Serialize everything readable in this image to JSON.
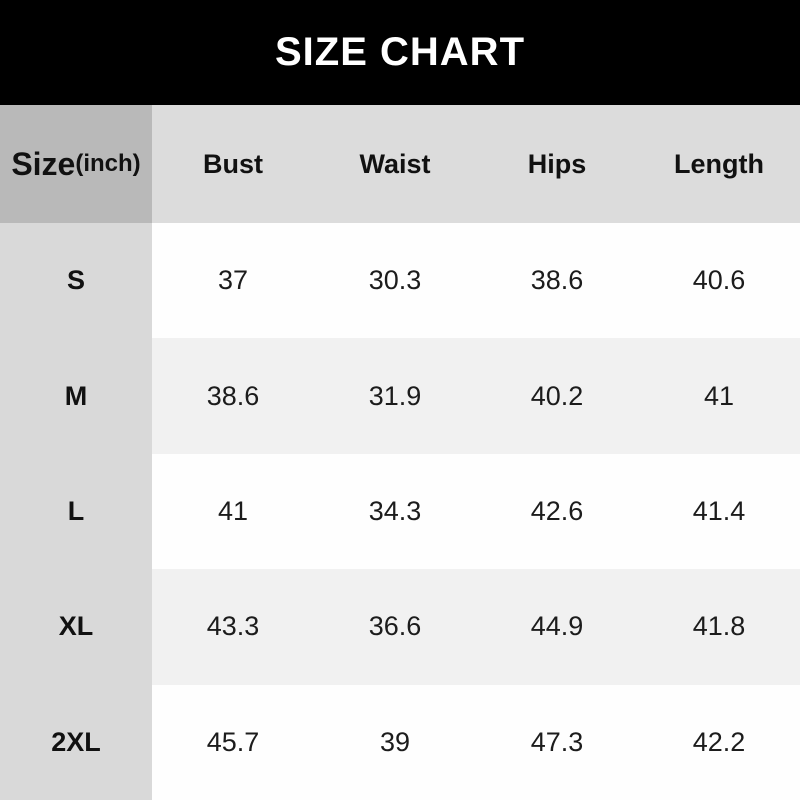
{
  "title": "SIZE CHART",
  "table": {
    "unit_label": {
      "main": "Size",
      "suffix": "(inch)"
    },
    "columns": [
      "Bust",
      "Waist",
      "Hips",
      "Length"
    ],
    "rows": [
      {
        "size": "S",
        "values": [
          "37",
          "30.3",
          "38.6",
          "40.6"
        ]
      },
      {
        "size": "M",
        "values": [
          "38.6",
          "31.9",
          "40.2",
          "41"
        ]
      },
      {
        "size": "L",
        "values": [
          "41",
          "34.3",
          "42.6",
          "41.4"
        ]
      },
      {
        "size": "XL",
        "values": [
          "43.3",
          "36.6",
          "44.9",
          "41.8"
        ]
      },
      {
        "size": "2XL",
        "values": [
          "45.7",
          "39",
          "47.3",
          "42.2"
        ]
      }
    ]
  },
  "colors": {
    "title_bar_bg": "#000000",
    "title_text": "#ffffff",
    "size_header_bg": "#b9b9b9",
    "column_header_bg": "#dcdcdc",
    "size_column_bg": "#d9d9d9",
    "row_odd_bg": "#fefefe",
    "row_even_bg": "#f1f1f1",
    "text": "#1c1c1c"
  }
}
